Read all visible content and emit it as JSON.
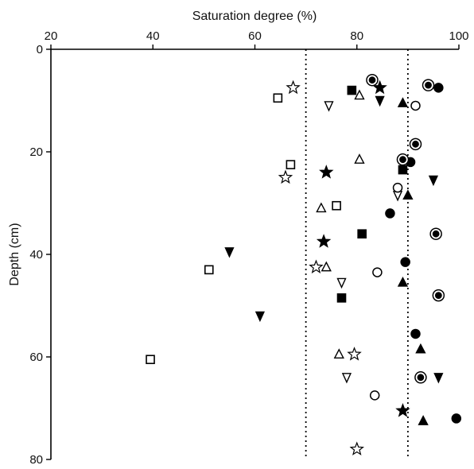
{
  "chart_data": {
    "type": "scatter",
    "xlabel": "Saturation degree (%)",
    "ylabel": "Depth (cm)",
    "xlim": [
      20,
      100
    ],
    "ylim": [
      0,
      80
    ],
    "x_axis_position": "top",
    "y_axis_inverted": true,
    "x_ticks": [
      "20",
      "40",
      "60",
      "80",
      "100"
    ],
    "y_ticks": [
      "0",
      "20",
      "40",
      "60",
      "80"
    ],
    "grid": false,
    "reference_lines": [
      {
        "axis": "x",
        "value": 70,
        "style": "dotted"
      },
      {
        "axis": "x",
        "value": 90,
        "style": "dotted"
      }
    ],
    "series": [
      {
        "marker": "open-square",
        "points": [
          [
            64.5,
            9.5
          ],
          [
            67,
            22.5
          ],
          [
            76,
            30.5
          ],
          [
            51,
            43
          ],
          [
            39.5,
            60.5
          ]
        ]
      },
      {
        "marker": "filled-square",
        "points": [
          [
            79,
            8
          ],
          [
            89,
            23.5
          ],
          [
            81,
            36
          ],
          [
            77,
            48.5
          ]
        ]
      },
      {
        "marker": "open-star",
        "points": [
          [
            67.5,
            7.5
          ],
          [
            66,
            25
          ],
          [
            72,
            42.5
          ],
          [
            79.5,
            59.5
          ],
          [
            80,
            78
          ]
        ]
      },
      {
        "marker": "filled-star",
        "points": [
          [
            84.5,
            7.5
          ],
          [
            74,
            24
          ],
          [
            73.5,
            37.5
          ],
          [
            89,
            70.5
          ]
        ]
      },
      {
        "marker": "open-triangle-up",
        "points": [
          [
            80.5,
            9
          ],
          [
            80.5,
            21.5
          ],
          [
            73,
            31
          ],
          [
            74,
            42.5
          ],
          [
            76.5,
            59.5
          ]
        ]
      },
      {
        "marker": "filled-triangle-up",
        "points": [
          [
            89,
            10.5
          ],
          [
            90,
            28.5
          ],
          [
            89,
            45.5
          ],
          [
            92.5,
            58.5
          ],
          [
            93,
            72.5
          ]
        ]
      },
      {
        "marker": "open-triangle-down",
        "points": [
          [
            74.5,
            11
          ],
          [
            88,
            28.5
          ],
          [
            77,
            45.5
          ],
          [
            78,
            64
          ]
        ]
      },
      {
        "marker": "filled-triangle-down",
        "points": [
          [
            84.5,
            10
          ],
          [
            95,
            25.5
          ],
          [
            55,
            39.5
          ],
          [
            61,
            52
          ],
          [
            96,
            64
          ]
        ]
      },
      {
        "marker": "open-circle",
        "points": [
          [
            91.5,
            11
          ],
          [
            88,
            27
          ],
          [
            84,
            43.5
          ],
          [
            83.5,
            67.5
          ]
        ]
      },
      {
        "marker": "filled-circle",
        "points": [
          [
            96,
            7.5
          ],
          [
            90.5,
            22
          ],
          [
            86.5,
            32
          ],
          [
            89.5,
            41.5
          ],
          [
            91.5,
            55.5
          ],
          [
            99.5,
            72
          ]
        ]
      },
      {
        "marker": "double-circle",
        "points": [
          [
            83,
            6
          ],
          [
            94,
            7
          ],
          [
            91.5,
            18.5
          ],
          [
            89,
            21.5
          ],
          [
            95.5,
            36
          ],
          [
            96,
            48
          ],
          [
            92.5,
            64
          ]
        ]
      }
    ]
  }
}
